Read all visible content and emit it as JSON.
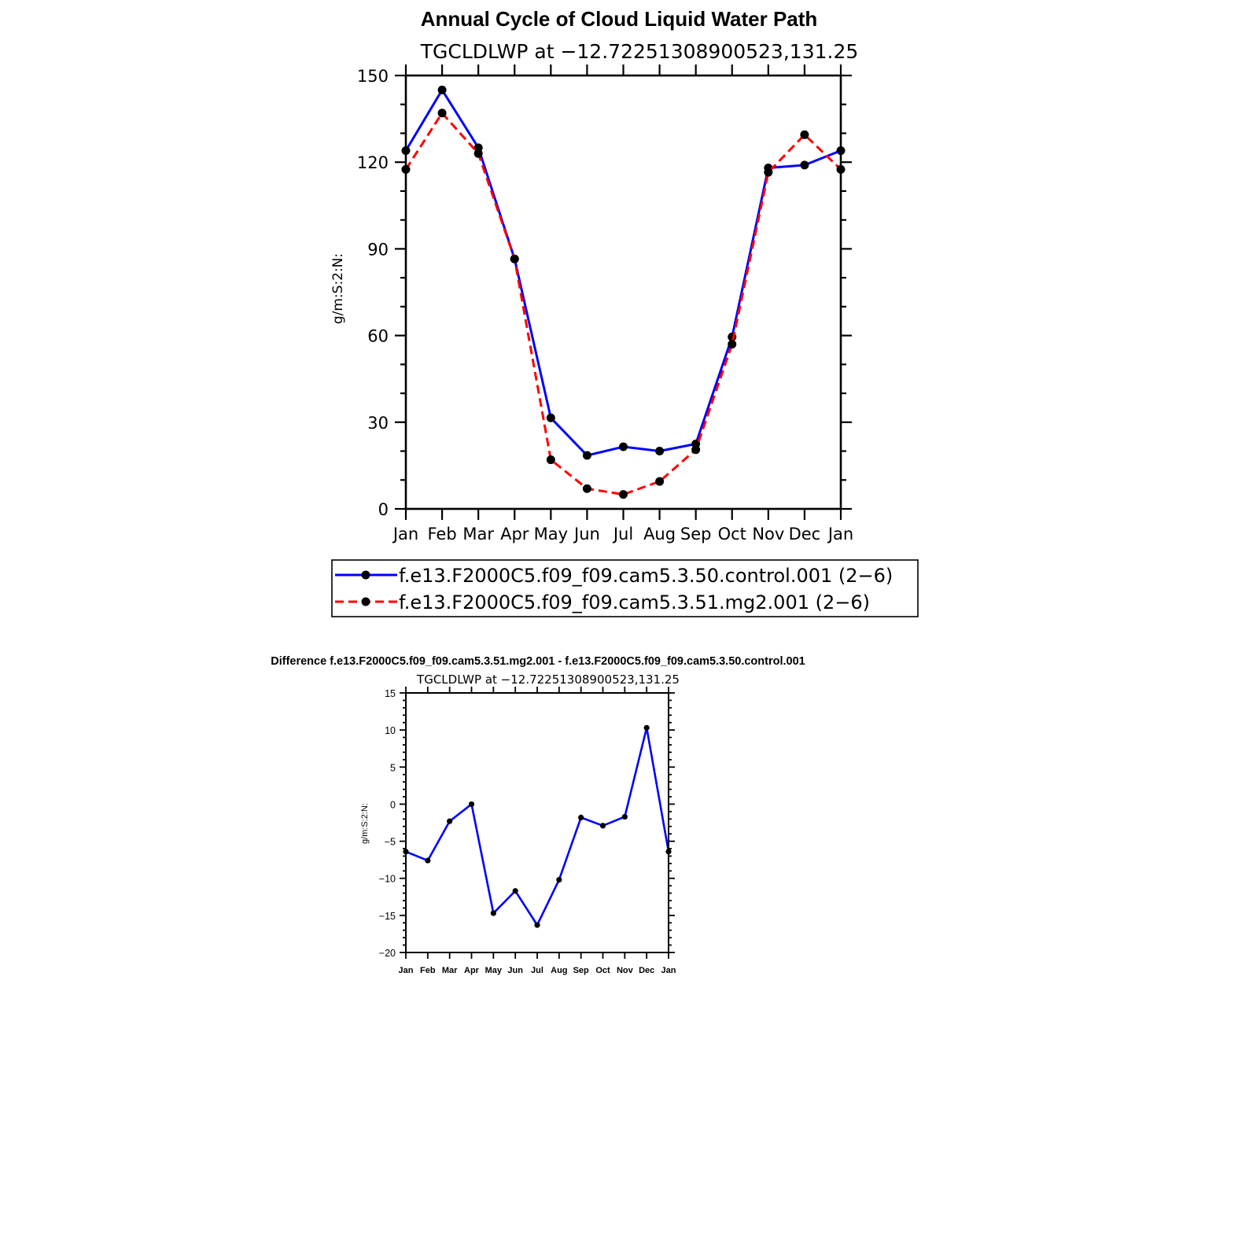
{
  "chart_data": [
    {
      "type": "line",
      "title": "Annual Cycle of Cloud Liquid Water Path",
      "subtitle": "TGCLDLWP  at  −12.72251308900523,131.25",
      "xlabel": "",
      "ylabel": "g/m:S:2:N:",
      "categories": [
        "Jan",
        "Feb",
        "Mar",
        "Apr",
        "May",
        "Jun",
        "Jul",
        "Aug",
        "Sep",
        "Oct",
        "Nov",
        "Dec",
        "Jan"
      ],
      "ylim": [
        0,
        150
      ],
      "yticks": [
        "0",
        "30",
        "60",
        "90",
        "120",
        "150"
      ],
      "grid": false,
      "legend_position": "bottom",
      "series": [
        {
          "name": "f.e13.F2000C5.f09_f09.cam5.3.50.control.001  (2−6)",
          "color": "#0000ff",
          "style": "solid",
          "values": [
            124,
            145,
            125,
            86.5,
            31.5,
            18.5,
            21.5,
            20,
            22.5,
            59.5,
            118,
            119,
            124
          ]
        },
        {
          "name": "f.e13.F2000C5.f09_f09.cam5.3.51.mg2.001  (2−6)",
          "color": "#ff0000",
          "style": "dashed",
          "values": [
            117.5,
            137,
            123,
            86.5,
            17,
            7,
            5,
            9.5,
            20.5,
            57,
            116.5,
            129.5,
            117.5
          ]
        }
      ]
    },
    {
      "type": "line",
      "title": "Difference f.e13.F2000C5.f09_f09.cam5.3.51.mg2.001 - f.e13.F2000C5.f09_f09.cam5.3.50.control.001",
      "subtitle": "TGCLDLWP  at  −12.72251308900523,131.25",
      "xlabel": "",
      "ylabel": "g/m:S:2:N:",
      "categories": [
        "Jan",
        "Feb",
        "Mar",
        "Apr",
        "May",
        "Jun",
        "Jul",
        "Aug",
        "Sep",
        "Oct",
        "Nov",
        "Dec",
        "Jan"
      ],
      "ylim": [
        -20,
        15
      ],
      "yticks": [
        "−20",
        "−15",
        "−10",
        "−5",
        "0",
        "5",
        "10",
        "15"
      ],
      "grid": false,
      "series": [
        {
          "color": "#0000ff",
          "style": "solid",
          "values": [
            -6.4,
            -7.6,
            -2.3,
            0,
            -14.7,
            -11.7,
            -16.3,
            -10.2,
            -1.8,
            -2.9,
            -1.7,
            10.3,
            -6.4
          ]
        }
      ]
    }
  ]
}
